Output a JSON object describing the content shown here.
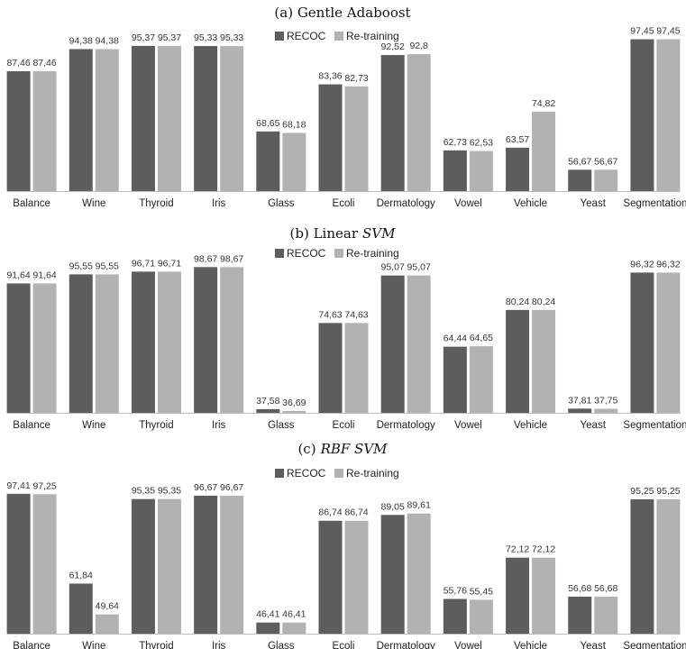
{
  "legend": {
    "recoc": "RECOC",
    "retraining": "Re-training"
  },
  "colors": {
    "recoc": "#5d5d5d",
    "retraining": "#b2b2b2"
  },
  "chart_data": [
    {
      "type": "bar",
      "title_prefix": "(a) Gentle Adaboost",
      "title_italic": "",
      "categories": [
        "Balance",
        "Wine",
        "Thyroid",
        "Iris",
        "Glass",
        "Ecoli",
        "Dermatology",
        "Vowel",
        "Vehicle",
        "Yeast",
        "Segmentation"
      ],
      "series": [
        {
          "name": "RECOC",
          "values": [
            87.46,
            94.38,
            95.37,
            95.33,
            68.65,
            83.36,
            92.52,
            62.73,
            63.57,
            56.67,
            97.45
          ],
          "labels": [
            "87,46",
            "94,38",
            "95,37",
            "95,33",
            "68,65",
            "83,36",
            "92,52",
            "62,73",
            "63,57",
            "56,67",
            "97,45"
          ]
        },
        {
          "name": "Re-training",
          "values": [
            87.46,
            94.38,
            95.37,
            95.33,
            68.18,
            82.73,
            92.8,
            62.53,
            74.82,
            56.67,
            97.45
          ],
          "labels": [
            "87,46",
            "94,38",
            "95,37",
            "95,33",
            "68,18",
            "82,73",
            "92,8",
            "62,53",
            "74,82",
            "56,67",
            "97,45"
          ]
        }
      ],
      "legend_position": "top"
    },
    {
      "type": "bar",
      "title_prefix": "(b) Linear",
      "title_italic": "SVM",
      "categories": [
        "Balance",
        "Wine",
        "Thyroid",
        "Iris",
        "Glass",
        "Ecoli",
        "Dermatology",
        "Vowel",
        "Vehicle",
        "Yeast",
        "Segmentation"
      ],
      "series": [
        {
          "name": "RECOC",
          "values": [
            91.64,
            95.55,
            96.71,
            98.67,
            37.58,
            74.63,
            95.07,
            64.44,
            80.24,
            37.81,
            96.32
          ],
          "labels": [
            "91,64",
            "95,55",
            "96,71",
            "98,67",
            "37,58",
            "74,63",
            "95,07",
            "64,44",
            "80,24",
            "37,81",
            "96,32"
          ]
        },
        {
          "name": "Re-training",
          "values": [
            91.64,
            95.55,
            96.71,
            98.67,
            36.69,
            74.63,
            95.07,
            64.65,
            80.24,
            37.75,
            96.32
          ],
          "labels": [
            "91,64",
            "95,55",
            "96,71",
            "98,67",
            "36,69",
            "74,63",
            "95,07",
            "64,65",
            "80,24",
            "37,75",
            "96,32"
          ]
        }
      ],
      "legend_position": "top"
    },
    {
      "type": "bar",
      "title_prefix": "(c)",
      "title_italic": "RBF SVM",
      "categories": [
        "Balance",
        "Wine",
        "Thyroid",
        "Iris",
        "Glass",
        "Ecoli",
        "Dermatology",
        "Vowel",
        "Vehicle",
        "Yeast",
        "Segmentation"
      ],
      "series": [
        {
          "name": "RECOC",
          "values": [
            97.41,
            61.84,
            95.35,
            96.67,
            46.41,
            86.74,
            89.05,
            55.76,
            72.12,
            56.68,
            95.25
          ],
          "labels": [
            "97,41",
            "61,84",
            "95,35",
            "96,67",
            "46,41",
            "86,74",
            "89,05",
            "55,76",
            "72,12",
            "56,68",
            "95,25"
          ]
        },
        {
          "name": "Re-training",
          "values": [
            97.25,
            49.64,
            95.35,
            96.67,
            46.41,
            86.74,
            89.61,
            55.45,
            72.12,
            56.68,
            95.25
          ],
          "labels": [
            "97,25",
            "49,64",
            "95,35",
            "96,67",
            "46,41",
            "86,74",
            "89,61",
            "55,45",
            "72,12",
            "56,68",
            "95,25"
          ]
        }
      ],
      "legend_position": "top"
    }
  ]
}
